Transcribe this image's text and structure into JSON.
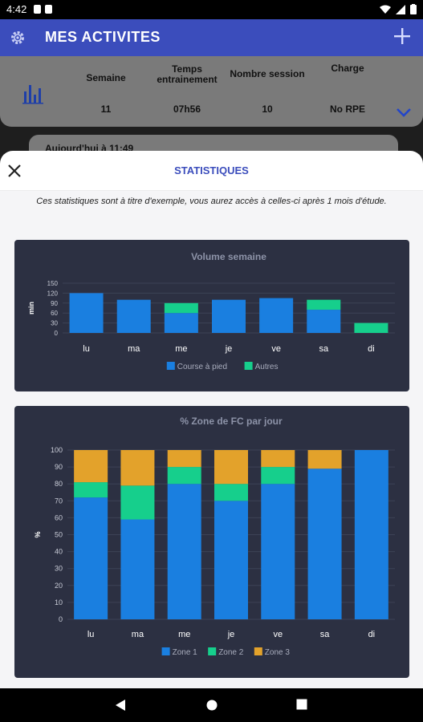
{
  "status_bar": {
    "time": "4:42"
  },
  "app_bar": {
    "title": "MES ACTIVITES",
    "settings_icon": "gear-icon",
    "add_icon": "plus-icon"
  },
  "summary": {
    "columns": [
      {
        "header": "Semaine",
        "value": "11"
      },
      {
        "header": "Temps\nentrainement",
        "value": "07h56"
      },
      {
        "header": "Nombre session",
        "value": "10"
      },
      {
        "header": "Charge",
        "value": "No RPE"
      }
    ]
  },
  "activity_peek": {
    "label": "Aujourd'hui à 11:49"
  },
  "sheet": {
    "title": "STATISTIQUES",
    "note": "Ces statistiques sont à titre d'exemple, vous aurez accès à celles-ci après 1 mois d'étude."
  },
  "colors": {
    "accent": "#3b4dbc",
    "card_bg": "#2c3042",
    "blue": "#1a7fe0",
    "green": "#16cf8c",
    "orange": "#e3a22b"
  },
  "chart_data": [
    {
      "type": "bar",
      "stacked": true,
      "title": "Volume semaine",
      "ylabel": "min",
      "ylim": [
        0,
        150
      ],
      "yticks": [
        0,
        30,
        60,
        90,
        120,
        150
      ],
      "categories": [
        "lu",
        "ma",
        "me",
        "je",
        "ve",
        "sa",
        "di"
      ],
      "series": [
        {
          "name": "Course à pied",
          "values": [
            120,
            100,
            60,
            100,
            105,
            70,
            0
          ]
        },
        {
          "name": "Autres",
          "values": [
            0,
            0,
            30,
            0,
            0,
            30,
            30
          ]
        }
      ],
      "legend": "bottom"
    },
    {
      "type": "bar",
      "stacked": true,
      "title": "% Zone de FC par jour",
      "ylabel": "%",
      "ylim": [
        0,
        100
      ],
      "yticks": [
        0,
        10,
        20,
        30,
        40,
        50,
        60,
        70,
        80,
        90,
        100
      ],
      "categories": [
        "lu",
        "ma",
        "me",
        "je",
        "ve",
        "sa",
        "di"
      ],
      "series": [
        {
          "name": "Zone 1",
          "values": [
            72,
            59,
            80,
            70,
            80,
            89,
            100
          ]
        },
        {
          "name": "Zone 2",
          "values": [
            9,
            20,
            10,
            10,
            10,
            0,
            0
          ]
        },
        {
          "name": "Zone 3",
          "values": [
            19,
            21,
            10,
            20,
            10,
            11,
            0
          ]
        }
      ],
      "legend": "bottom"
    }
  ]
}
